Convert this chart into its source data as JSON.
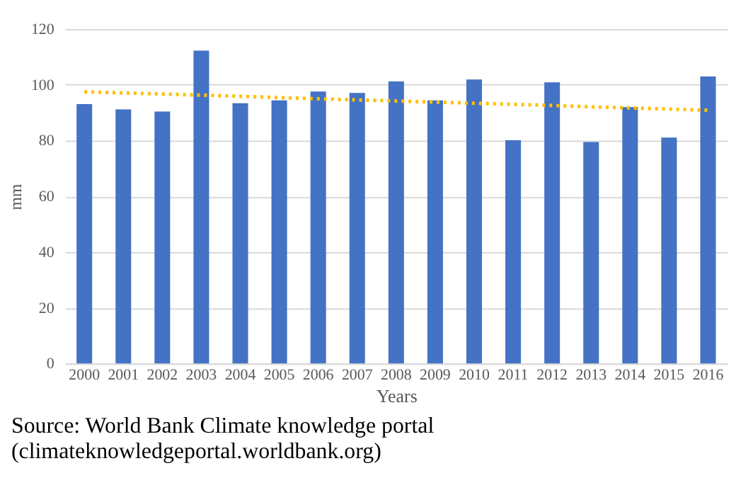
{
  "chart_data": {
    "type": "bar",
    "xlabel": "Years",
    "ylabel": "mm",
    "categories": [
      "2000",
      "2001",
      "2002",
      "2003",
      "2004",
      "2005",
      "2006",
      "2007",
      "2008",
      "2009",
      "2010",
      "2011",
      "2012",
      "2013",
      "2014",
      "2015",
      "2016"
    ],
    "series": [
      {
        "color": "#4472c4",
        "values": [
          93.1,
          91.2,
          90.4,
          112.3,
          93.4,
          94.4,
          97.6,
          97.1,
          101.2,
          94.4,
          101.9,
          80.1,
          100.9,
          79.5,
          92.0,
          81.1,
          103.0
        ]
      },
      {
        "type": "line",
        "color": "#ffc000",
        "line_style": "dotted",
        "values": [
          97.5,
          97.1,
          96.7,
          96.3,
          95.9,
          95.4,
          95.0,
          94.6,
          94.2,
          93.8,
          93.4,
          93.0,
          92.6,
          92.1,
          91.7,
          91.3,
          90.9
        ]
      }
    ],
    "ylim": [
      0,
      120
    ],
    "yticks": [
      0,
      20,
      40,
      60,
      80,
      100,
      120
    ],
    "grid": "y",
    "annotations": [
      "Source: World Bank Climate knowledge portal",
      "(climateknowledgeportal.worldbank.org)"
    ]
  }
}
